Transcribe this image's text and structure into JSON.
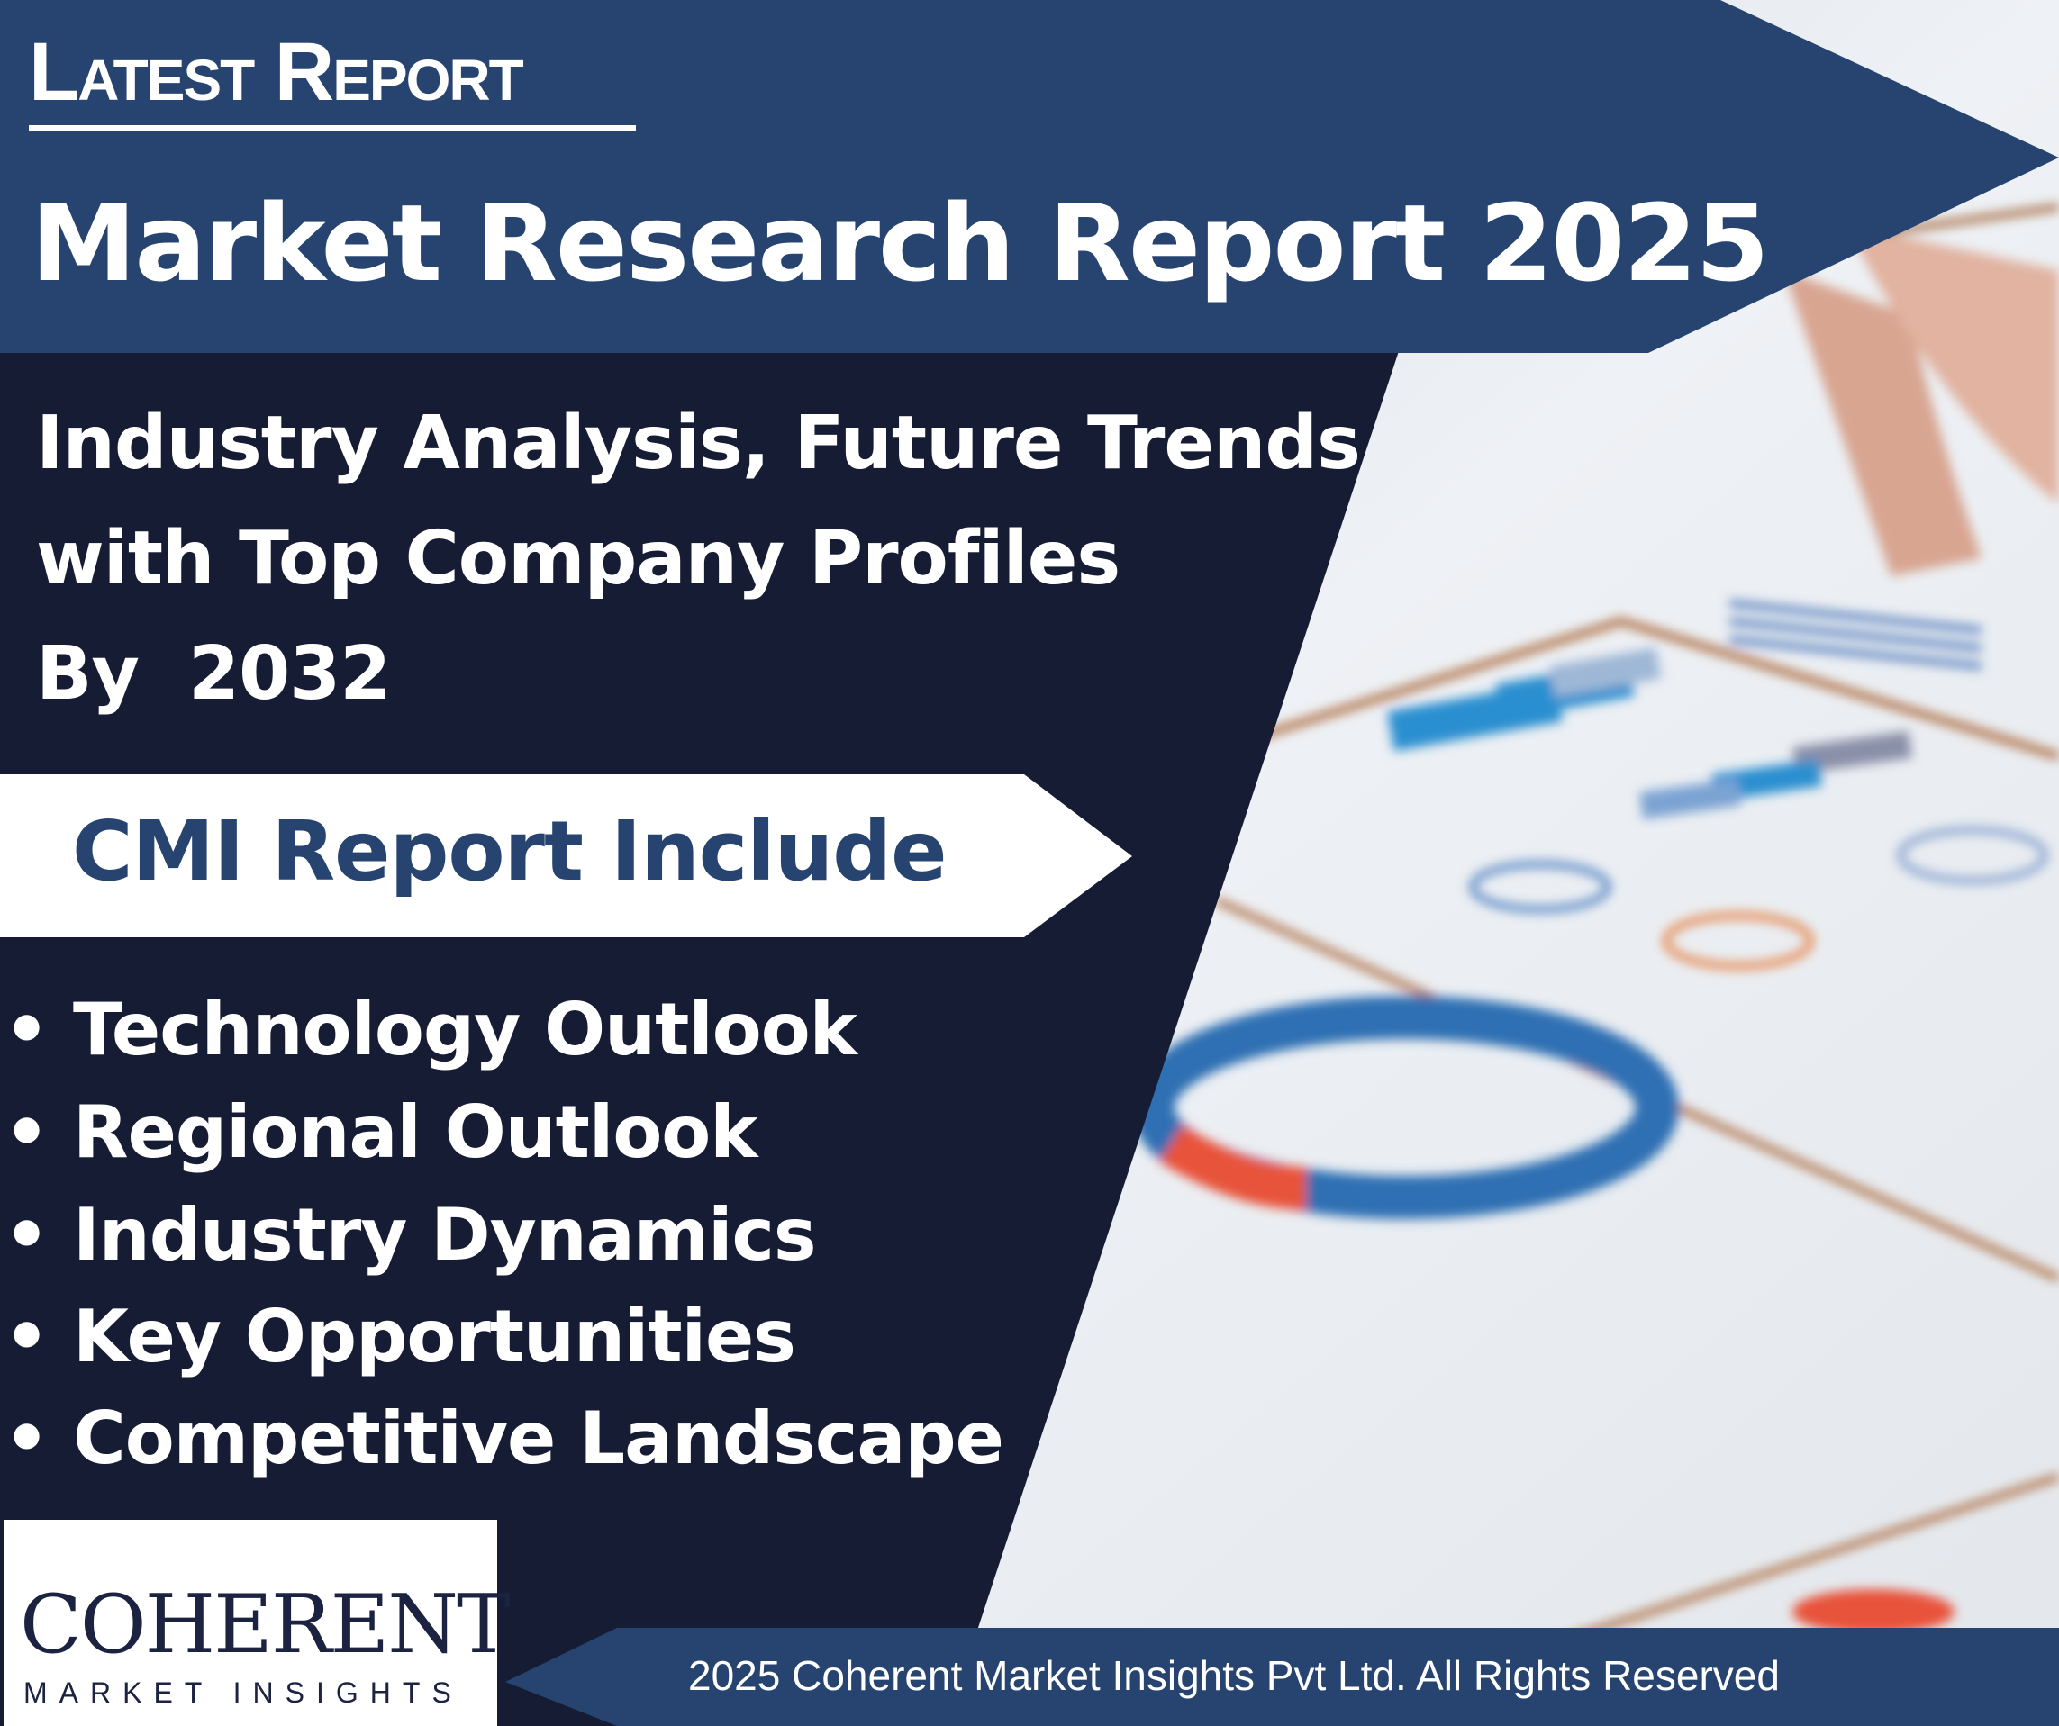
{
  "header": {
    "kicker": "Latest Report",
    "title": "Market Research Report 2025"
  },
  "subtitle": {
    "lines": [
      "Industry Analysis, Future Trends",
      "with Top Company Profiles",
      "By  2032"
    ]
  },
  "includes": {
    "heading": "CMI Report Include",
    "items": [
      "• Technology Outlook",
      "• Regional Outlook",
      "• Industry Dynamics",
      "• Key Opportunities",
      "• Competitive Landscape"
    ]
  },
  "logo": {
    "name": "COHERENT",
    "tagline": "MARKET INSIGHTS"
  },
  "footer": {
    "copyright": "2025 Coherent Market Insights Pvt Ltd. All Rights Reserved"
  },
  "colors": {
    "banner_blue": "#26446f",
    "panel_navy": "#161c33",
    "white": "#ffffff"
  }
}
